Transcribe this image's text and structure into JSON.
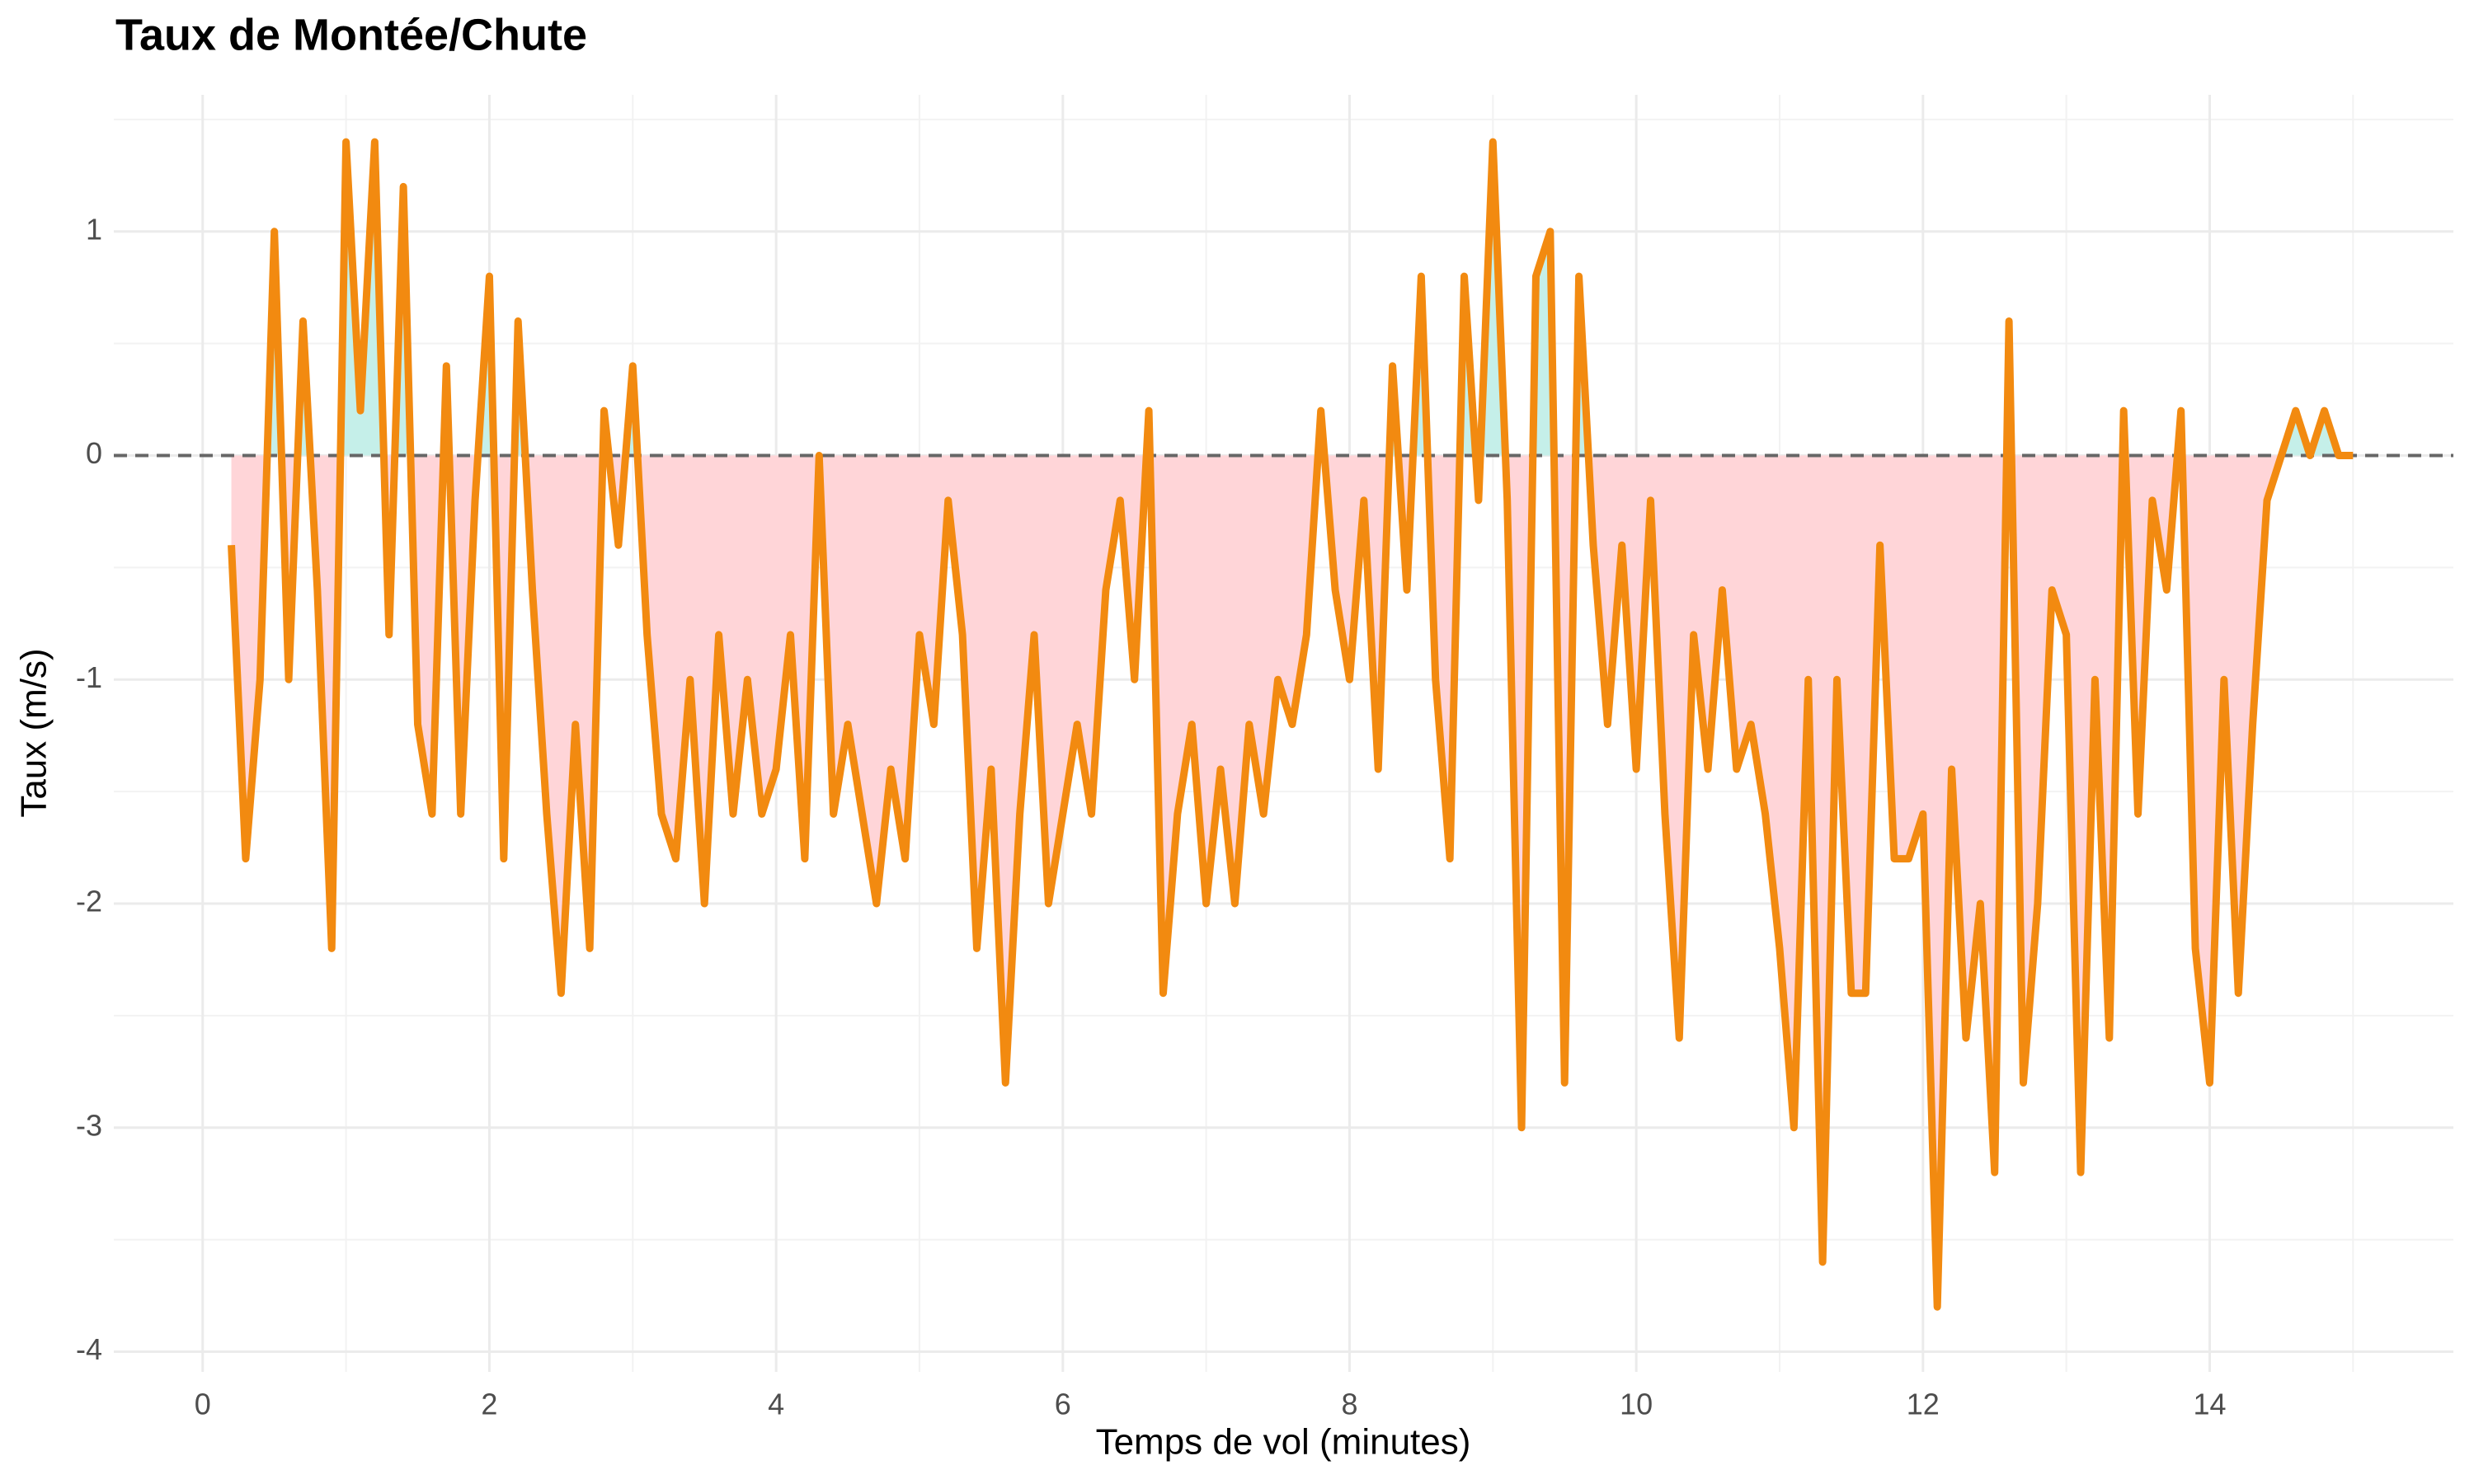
{
  "chart_data": {
    "type": "line",
    "title": "Taux de Montée/Chute",
    "x_label": "Temps de vol (minutes)",
    "y_label": "Taux (m/s)",
    "x": [
      0.2,
      0.3,
      0.4,
      0.5,
      0.6,
      0.7,
      0.8,
      0.9,
      1.0,
      1.1,
      1.2,
      1.3,
      1.4,
      1.5,
      1.6,
      1.7,
      1.8,
      1.9,
      2.0,
      2.1,
      2.2,
      2.3,
      2.4,
      2.5,
      2.6,
      2.7,
      2.8,
      2.9,
      3.0,
      3.1,
      3.2,
      3.3,
      3.4,
      3.5,
      3.6,
      3.7,
      3.8,
      3.9,
      4.0,
      4.1,
      4.2,
      4.3,
      4.4,
      4.5,
      4.6,
      4.7,
      4.8,
      4.9,
      5.0,
      5.1,
      5.2,
      5.3,
      5.4,
      5.5,
      5.6,
      5.7,
      5.8,
      5.9,
      6.0,
      6.1,
      6.2,
      6.3,
      6.4,
      6.5,
      6.6,
      6.7,
      6.8,
      6.9,
      7.0,
      7.1,
      7.2,
      7.3,
      7.4,
      7.5,
      7.6,
      7.7,
      7.8,
      7.9,
      8.0,
      8.1,
      8.2,
      8.3,
      8.4,
      8.5,
      8.6,
      8.7,
      8.8,
      8.9,
      9.0,
      9.1,
      9.2,
      9.3,
      9.4,
      9.5,
      9.6,
      9.7,
      9.8,
      9.9,
      10.0,
      10.1,
      10.2,
      10.3,
      10.4,
      10.5,
      10.6,
      10.7,
      10.8,
      10.9,
      11.0,
      11.1,
      11.2,
      11.3,
      11.4,
      11.5,
      11.6,
      11.7,
      11.8,
      11.9,
      12.0,
      12.1,
      12.2,
      12.3,
      12.4,
      12.5,
      12.6,
      12.7,
      12.8,
      12.9,
      13.0,
      13.1,
      13.2,
      13.3,
      13.4,
      13.5,
      13.6,
      13.7,
      13.8,
      13.9,
      14.0,
      14.1,
      14.2,
      14.3,
      14.4,
      14.5,
      14.6,
      14.7,
      14.8,
      14.9,
      15.0
    ],
    "series": [
      {
        "name": "Taux",
        "color": "#f28a10",
        "positive_fill": "#c5efe9",
        "negative_fill": "#ffd5d8",
        "values": [
          -0.4,
          -1.8,
          -1.0,
          1.0,
          -1.0,
          0.6,
          -0.6,
          -2.2,
          1.4,
          0.2,
          1.4,
          -0.8,
          1.2,
          -1.2,
          -1.6,
          0.4,
          -1.6,
          -0.2,
          0.8,
          -1.8,
          0.6,
          -0.6,
          -1.6,
          -2.4,
          -1.2,
          -2.2,
          0.2,
          -0.4,
          0.4,
          -0.8,
          -1.6,
          -1.8,
          -1.0,
          -2.0,
          -0.8,
          -1.6,
          -1.0,
          -1.6,
          -1.4,
          -0.8,
          -1.8,
          0.0,
          -1.6,
          -1.2,
          -1.6,
          -2.0,
          -1.4,
          -1.8,
          -0.8,
          -1.2,
          -0.2,
          -0.8,
          -2.2,
          -1.4,
          -2.8,
          -1.6,
          -0.8,
          -2.0,
          -1.6,
          -1.2,
          -1.6,
          -0.6,
          -0.2,
          -1.0,
          0.2,
          -2.4,
          -1.6,
          -1.2,
          -2.0,
          -1.4,
          -2.0,
          -1.2,
          -1.6,
          -1.0,
          -1.2,
          -0.8,
          0.2,
          -0.6,
          -1.0,
          -0.2,
          -1.4,
          0.4,
          -0.6,
          0.8,
          -1.0,
          -1.8,
          0.8,
          -0.2,
          1.4,
          -0.2,
          -3.0,
          0.8,
          1.0,
          -2.8,
          0.8,
          -0.4,
          -1.2,
          -0.4,
          -1.4,
          -0.2,
          -1.6,
          -2.6,
          -0.8,
          -1.4,
          -0.6,
          -1.4,
          -1.2,
          -1.6,
          -2.2,
          -3.0,
          -1.0,
          -3.6,
          -1.0,
          -2.4,
          -2.4,
          -0.4,
          -1.8,
          -1.8,
          -1.6,
          -3.8,
          -1.4,
          -2.6,
          -2.0,
          -3.2,
          0.6,
          -2.8,
          -2.0,
          -0.6,
          -0.8,
          -3.2,
          -1.0,
          -2.6,
          0.2,
          -1.6,
          -0.2,
          -0.6,
          0.2,
          -2.2,
          -2.8,
          -1.0,
          -2.4,
          -1.2,
          -0.2,
          0.0,
          0.2,
          0.0,
          0.2,
          0.0,
          0.0
        ]
      }
    ],
    "xlim": [
      -0.62,
      15.7
    ],
    "ylim": [
      -4.09,
      1.61
    ],
    "xticks": [
      0,
      2,
      4,
      6,
      8,
      10,
      12,
      14
    ],
    "yticks": [
      -4,
      -3,
      -2,
      -1,
      0,
      1
    ],
    "grid": true,
    "reference_line": 0
  }
}
